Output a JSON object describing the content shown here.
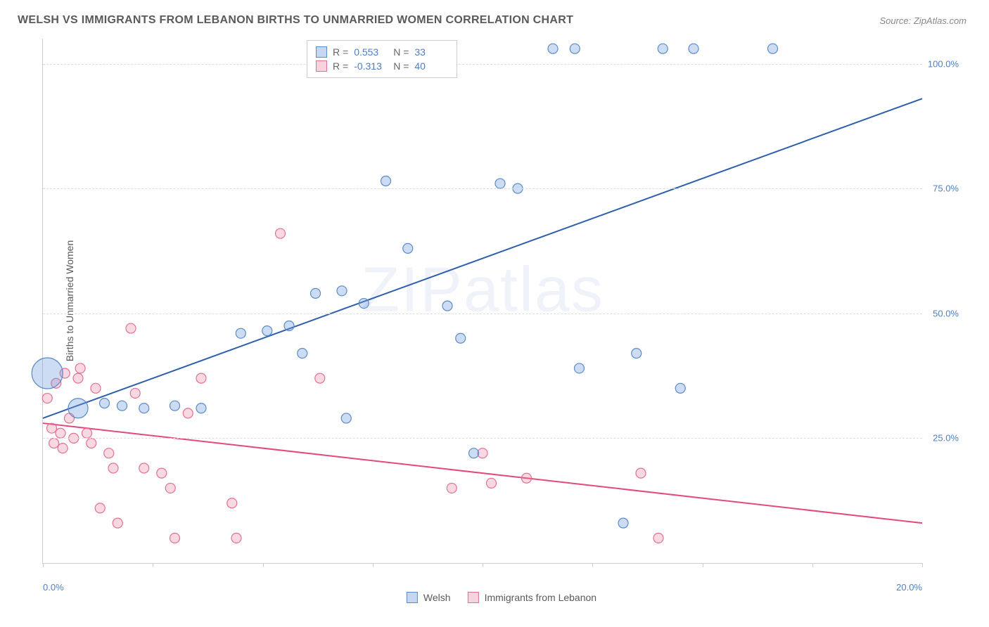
{
  "title": "WELSH VS IMMIGRANTS FROM LEBANON BIRTHS TO UNMARRIED WOMEN CORRELATION CHART",
  "source": "Source: ZipAtlas.com",
  "ylabel": "Births to Unmarried Women",
  "watermark_a": "ZIP",
  "watermark_b": "atlas",
  "chart": {
    "type": "scatter",
    "xlim": [
      0,
      20
    ],
    "ylim": [
      0,
      105
    ],
    "ytick_values": [
      25,
      50,
      75,
      100
    ],
    "ytick_labels": [
      "25.0%",
      "50.0%",
      "75.0%",
      "100.0%"
    ],
    "xtick_values": [
      0,
      2.5,
      5,
      7.5,
      10,
      12.5,
      15,
      17.5,
      20
    ],
    "xtick_label_left": "0.0%",
    "xtick_label_right": "20.0%",
    "grid_color": "#dddddd",
    "axis_color": "#cccccc",
    "background_color": "#ffffff"
  },
  "legend_top": {
    "rows": [
      {
        "r_label": "R =",
        "r": "0.553",
        "n_label": "N =",
        "n": "33"
      },
      {
        "r_label": "R =",
        "r": "-0.313",
        "n_label": "N =",
        "n": "40"
      }
    ]
  },
  "legend_bottom": {
    "series1": "Welsh",
    "series2": "Immigrants from Lebanon"
  },
  "series": {
    "welsh": {
      "color_fill": "rgba(109,156,222,0.35)",
      "color_stroke": "#5b8acb",
      "line_color": "#2e5fab",
      "line_width": 2,
      "trend": {
        "x1": 0,
        "y1": 29,
        "x2": 20,
        "y2": 93
      },
      "points": [
        {
          "x": 0.1,
          "y": 38,
          "r": 22
        },
        {
          "x": 0.8,
          "y": 31,
          "r": 14
        },
        {
          "x": 1.4,
          "y": 32,
          "r": 7
        },
        {
          "x": 1.8,
          "y": 31.5,
          "r": 7
        },
        {
          "x": 2.3,
          "y": 31,
          "r": 7
        },
        {
          "x": 3.0,
          "y": 31.5,
          "r": 7
        },
        {
          "x": 3.6,
          "y": 31,
          "r": 7
        },
        {
          "x": 4.5,
          "y": 46,
          "r": 7
        },
        {
          "x": 5.1,
          "y": 46.5,
          "r": 7
        },
        {
          "x": 5.6,
          "y": 47.5,
          "r": 7
        },
        {
          "x": 5.9,
          "y": 42,
          "r": 7
        },
        {
          "x": 6.2,
          "y": 54,
          "r": 7
        },
        {
          "x": 6.8,
          "y": 54.5,
          "r": 7
        },
        {
          "x": 6.9,
          "y": 29,
          "r": 7
        },
        {
          "x": 7.3,
          "y": 52,
          "r": 7
        },
        {
          "x": 7.8,
          "y": 76.5,
          "r": 7
        },
        {
          "x": 8.3,
          "y": 63,
          "r": 7
        },
        {
          "x": 9.2,
          "y": 51.5,
          "r": 7
        },
        {
          "x": 9.5,
          "y": 45,
          "r": 7
        },
        {
          "x": 9.8,
          "y": 22,
          "r": 7
        },
        {
          "x": 10.4,
          "y": 76,
          "r": 7
        },
        {
          "x": 10.8,
          "y": 75,
          "r": 7
        },
        {
          "x": 11.6,
          "y": 103,
          "r": 7
        },
        {
          "x": 12.1,
          "y": 103,
          "r": 7
        },
        {
          "x": 12.2,
          "y": 39,
          "r": 7
        },
        {
          "x": 13.2,
          "y": 8,
          "r": 7
        },
        {
          "x": 13.5,
          "y": 42,
          "r": 7
        },
        {
          "x": 14.1,
          "y": 103,
          "r": 7
        },
        {
          "x": 14.5,
          "y": 35,
          "r": 7
        },
        {
          "x": 14.8,
          "y": 103,
          "r": 7
        },
        {
          "x": 16.6,
          "y": 103,
          "r": 7
        }
      ]
    },
    "lebanon": {
      "color_fill": "rgba(233,128,160,0.30)",
      "color_stroke": "#e56f94",
      "line_color": "#e24a7a",
      "line_width": 2,
      "trend": {
        "x1": 0,
        "y1": 28,
        "x2": 20,
        "y2": 8
      },
      "points": [
        {
          "x": 0.1,
          "y": 33,
          "r": 7
        },
        {
          "x": 0.2,
          "y": 27,
          "r": 7
        },
        {
          "x": 0.25,
          "y": 24,
          "r": 7
        },
        {
          "x": 0.3,
          "y": 36,
          "r": 7
        },
        {
          "x": 0.4,
          "y": 26,
          "r": 7
        },
        {
          "x": 0.45,
          "y": 23,
          "r": 7
        },
        {
          "x": 0.5,
          "y": 38,
          "r": 7
        },
        {
          "x": 0.6,
          "y": 29,
          "r": 7
        },
        {
          "x": 0.7,
          "y": 25,
          "r": 7
        },
        {
          "x": 0.8,
          "y": 37,
          "r": 7
        },
        {
          "x": 0.85,
          "y": 39,
          "r": 7
        },
        {
          "x": 1.0,
          "y": 26,
          "r": 7
        },
        {
          "x": 1.1,
          "y": 24,
          "r": 7
        },
        {
          "x": 1.2,
          "y": 35,
          "r": 7
        },
        {
          "x": 1.3,
          "y": 11,
          "r": 7
        },
        {
          "x": 1.5,
          "y": 22,
          "r": 7
        },
        {
          "x": 1.6,
          "y": 19,
          "r": 7
        },
        {
          "x": 1.7,
          "y": 8,
          "r": 7
        },
        {
          "x": 2.0,
          "y": 47,
          "r": 7
        },
        {
          "x": 2.1,
          "y": 34,
          "r": 7
        },
        {
          "x": 2.3,
          "y": 19,
          "r": 7
        },
        {
          "x": 2.7,
          "y": 18,
          "r": 7
        },
        {
          "x": 2.9,
          "y": 15,
          "r": 7
        },
        {
          "x": 3.0,
          "y": 5,
          "r": 7
        },
        {
          "x": 3.3,
          "y": 30,
          "r": 7
        },
        {
          "x": 3.6,
          "y": 37,
          "r": 7
        },
        {
          "x": 4.3,
          "y": 12,
          "r": 7
        },
        {
          "x": 4.4,
          "y": 5,
          "r": 7
        },
        {
          "x": 5.4,
          "y": 66,
          "r": 7
        },
        {
          "x": 6.3,
          "y": 37,
          "r": 7
        },
        {
          "x": 9.3,
          "y": 15,
          "r": 7
        },
        {
          "x": 10.0,
          "y": 22,
          "r": 7
        },
        {
          "x": 10.2,
          "y": 16,
          "r": 7
        },
        {
          "x": 11.0,
          "y": 17,
          "r": 7
        },
        {
          "x": 13.6,
          "y": 18,
          "r": 7
        },
        {
          "x": 14.0,
          "y": 5,
          "r": 7
        }
      ]
    }
  }
}
